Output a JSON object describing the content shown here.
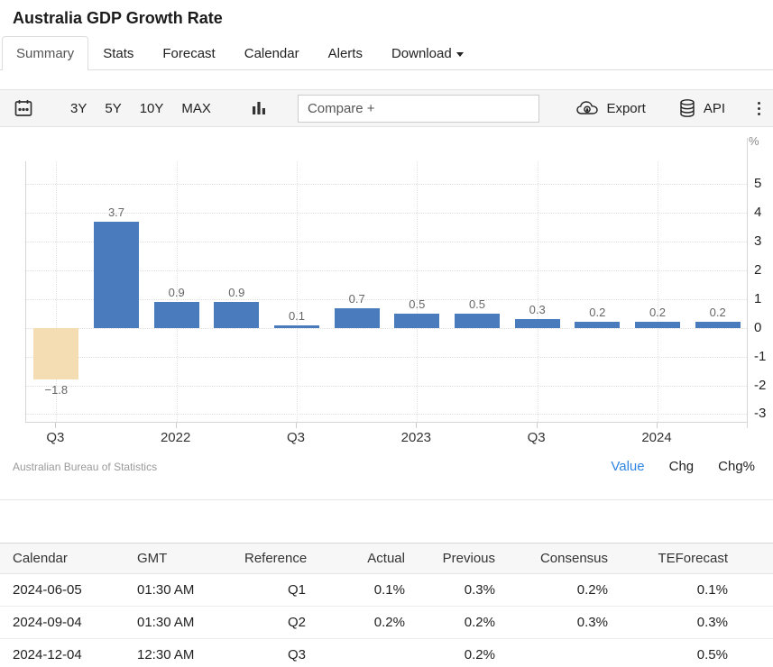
{
  "page": {
    "title": "Australia GDP Growth Rate"
  },
  "tabs": [
    {
      "label": "Summary",
      "active": true
    },
    {
      "label": "Stats",
      "active": false
    },
    {
      "label": "Forecast",
      "active": false
    },
    {
      "label": "Calendar",
      "active": false
    },
    {
      "label": "Alerts",
      "active": false
    },
    {
      "label": "Download",
      "active": false,
      "caret": true
    }
  ],
  "toolbar": {
    "ranges": [
      "3Y",
      "5Y",
      "10Y",
      "MAX"
    ],
    "compare_placeholder": "Compare +",
    "export_label": "Export",
    "api_label": "API",
    "icons": [
      "calendar-icon",
      "bar-chart-icon",
      "cloud-download-icon",
      "database-icon",
      "kebab-menu-icon"
    ]
  },
  "chart_data": {
    "type": "bar",
    "title": "Australia GDP Growth Rate",
    "ylabel": "%",
    "xlabel": "",
    "categories": [
      "Q3 2021",
      "Q4 2021",
      "Q1 2022",
      "Q2 2022",
      "Q3 2022",
      "Q4 2022",
      "Q1 2023",
      "Q2 2023",
      "Q3 2023",
      "Q4 2023",
      "Q1 2024",
      "Q2 2024"
    ],
    "values": [
      -1.8,
      3.7,
      0.9,
      0.9,
      0.1,
      0.7,
      0.5,
      0.5,
      0.3,
      0.2,
      0.2,
      0.2
    ],
    "x_tick_labels": [
      "Q3",
      "2022",
      "Q3",
      "2023",
      "Q3",
      "2024"
    ],
    "x_tick_every": 2,
    "y_ticks": [
      5,
      4,
      3,
      2,
      1,
      0,
      -1,
      -2,
      -3
    ],
    "ylim": [
      -3.3,
      5.8
    ],
    "grid": true,
    "bar_color_positive": "#4a7cbd",
    "bar_color_negative": "#f4ddb2",
    "label_color": "#666666",
    "source": "Australian Bureau of Statistics",
    "modes": [
      "Value",
      "Chg",
      "Chg%"
    ],
    "active_mode": "Value",
    "accent_color": "#2f86e0"
  },
  "table": {
    "headers": [
      "Calendar",
      "GMT",
      "Reference",
      "Actual",
      "Previous",
      "Consensus",
      "TEForecast"
    ],
    "rows": [
      [
        "2024-06-05",
        "01:30 AM",
        "Q1",
        "0.1%",
        "0.3%",
        "0.2%",
        "0.1%"
      ],
      [
        "2024-09-04",
        "01:30 AM",
        "Q2",
        "0.2%",
        "0.2%",
        "0.3%",
        "0.3%"
      ],
      [
        "2024-12-04",
        "12:30 AM",
        "Q3",
        "",
        "0.2%",
        "",
        "0.5%"
      ]
    ]
  }
}
